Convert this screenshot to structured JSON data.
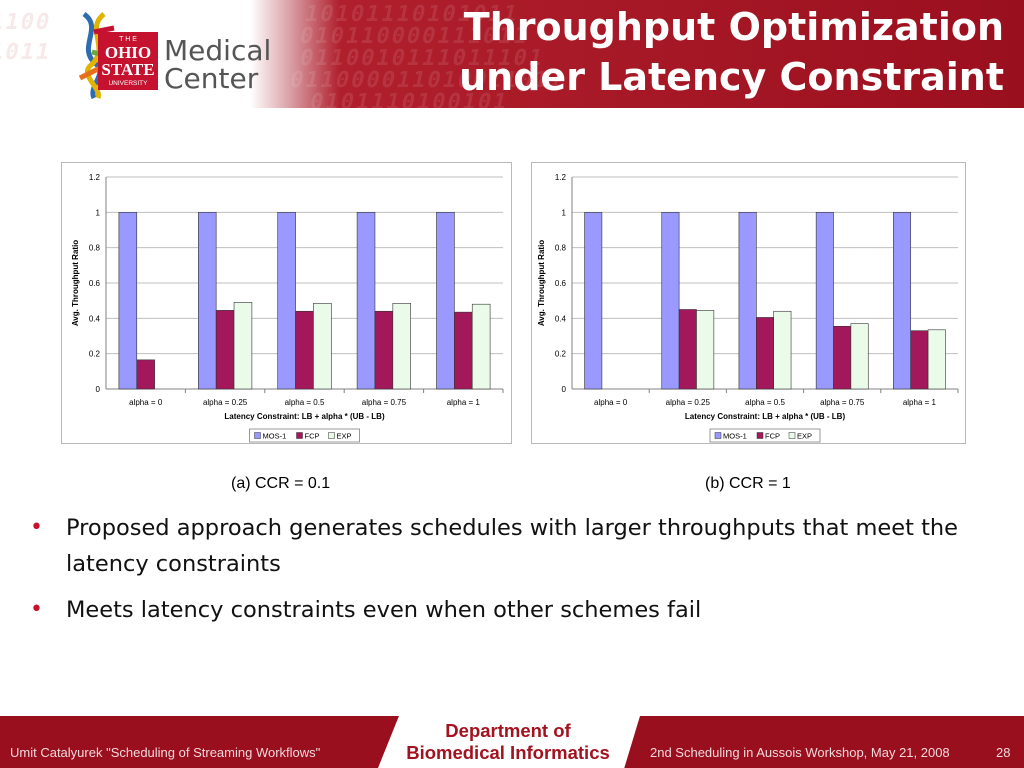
{
  "logo": {
    "line_the": "T H E",
    "line_ohio": "OHIO",
    "line_state": "STATE",
    "line_university": "UNIVERSITY",
    "word1": "Medical",
    "word2": "Center"
  },
  "title": {
    "line1": "Throughput Optimization",
    "line2": "under Latency Constraint"
  },
  "colors": {
    "MOS-1": "#9999ff",
    "FCP": "#a3185a",
    "EXP": "#eafbea",
    "accent": "#9a0f1e"
  },
  "chart_data": [
    {
      "type": "bar",
      "caption": "(a) CCR = 0.1",
      "categories": [
        "alpha = 0",
        "alpha = 0.25",
        "alpha = 0.5",
        "alpha = 0.75",
        "alpha = 1"
      ],
      "series": [
        {
          "name": "MOS-1",
          "values": [
            1,
            1,
            1,
            1,
            1
          ]
        },
        {
          "name": "FCP",
          "values": [
            0.165,
            0.445,
            0.44,
            0.44,
            0.435
          ]
        },
        {
          "name": "EXP",
          "values": [
            null,
            0.49,
            0.485,
            0.485,
            0.48
          ]
        }
      ],
      "xlabel": "Latency Constraint: LB + alpha * (UB - LB)",
      "ylabel": "Avg. Throughput Ratio",
      "ylim": [
        0,
        1.2
      ],
      "yticks": [
        "0",
        "0.2",
        "0.4",
        "0.6",
        "0.8",
        "1",
        "1.2"
      ],
      "grid": true,
      "legend": "bottom"
    },
    {
      "type": "bar",
      "caption": "(b) CCR = 1",
      "categories": [
        "alpha = 0",
        "alpha = 0.25",
        "alpha = 0.5",
        "alpha = 0.75",
        "alpha = 1"
      ],
      "series": [
        {
          "name": "MOS-1",
          "values": [
            1,
            1,
            1,
            1,
            1
          ]
        },
        {
          "name": "FCP",
          "values": [
            null,
            0.45,
            0.405,
            0.355,
            0.33
          ]
        },
        {
          "name": "EXP",
          "values": [
            null,
            0.445,
            0.44,
            0.37,
            0.335
          ]
        }
      ],
      "xlabel": "Latency Constraint: LB + alpha * (UB - LB)",
      "ylabel": "Avg. Throughput Ratio",
      "ylim": [
        0,
        1.2
      ],
      "yticks": [
        "0",
        "0.2",
        "0.4",
        "0.6",
        "0.8",
        "1",
        "1.2"
      ],
      "grid": true,
      "legend": "bottom"
    }
  ],
  "bullets": [
    "Proposed approach generates schedules with larger throughputs that meet the latency constraints",
    "Meets latency constraints even when other schemes fail"
  ],
  "footer": {
    "left": "Umit Catalyurek \"Scheduling of Streaming Workflows\"",
    "dept_line1": "Department of",
    "dept_line2": "Biomedical Informatics",
    "right": "2nd Scheduling in Aussois Workshop, May 21, 2008",
    "page": "28"
  }
}
